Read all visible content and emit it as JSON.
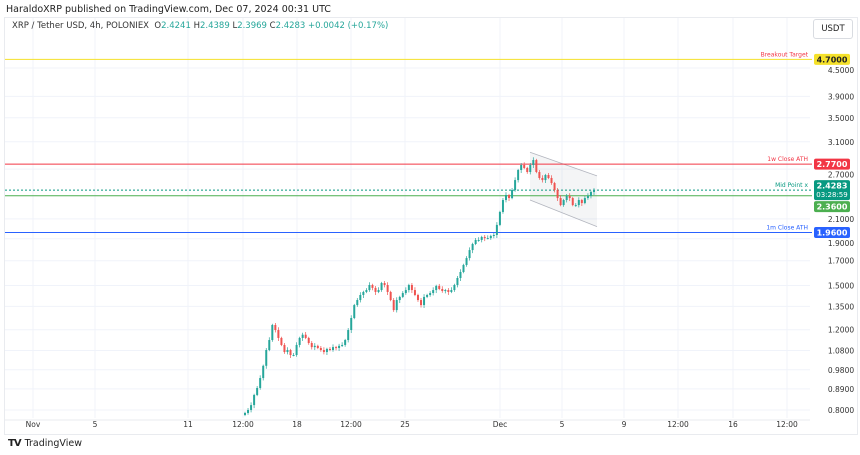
{
  "publisher_line": "HaraldoXRP published on TradingView.com, Dec 07, 2024 00:31 UTC",
  "legend": {
    "symbol": "XRP / Tether USD, 4h, POLONIEX",
    "o_label": "O",
    "o": "2.4241",
    "h_label": "H",
    "h": "2.4389",
    "l_label": "L",
    "l": "2.3969",
    "c_label": "C",
    "c": "2.4283",
    "change": "+0.0042 (+0.17%)"
  },
  "currency_button": "USDT",
  "brand": "TradingView",
  "colors": {
    "up": "#26a69a",
    "down": "#ef5350",
    "breakout": "#f5e12a",
    "close_ath_1w": "#f23645",
    "midpoint": "#4caf50",
    "close_ath_1m": "#2962ff",
    "last_price": "#089981"
  },
  "chart_data": {
    "type": "candlestick",
    "scale": "log",
    "ylim": [
      0.77,
      5.2
    ],
    "grid": true,
    "y_ticks": [
      "4.5000",
      "3.9000",
      "3.5000",
      "3.1000",
      "2.7000",
      "2.1000",
      "1.9000",
      "1.7000",
      "1.5000",
      "1.3500",
      "1.2000",
      "1.0800",
      "0.9800",
      "0.8900",
      "0.8000"
    ],
    "x_ticks": [
      "Nov",
      "5",
      "11",
      "12:00",
      "18",
      "12:00",
      "25",
      "Dec",
      "5",
      "9",
      "12:00",
      "16",
      "12:00"
    ],
    "closes": [
      0.788,
      0.8,
      0.82,
      0.863,
      0.894,
      0.94,
      1.0,
      1.083,
      1.139,
      1.229,
      1.198,
      1.151,
      1.111,
      1.072,
      1.083,
      1.056,
      1.056,
      1.111,
      1.151,
      1.17,
      1.151,
      1.122,
      1.099,
      1.106,
      1.094,
      1.083,
      1.072,
      1.089,
      1.083,
      1.099,
      1.094,
      1.106,
      1.111,
      1.139,
      1.198,
      1.273,
      1.359,
      1.394,
      1.43,
      1.452,
      1.466,
      1.504,
      1.482,
      1.452,
      1.466,
      1.519,
      1.504,
      1.452,
      1.394,
      1.325,
      1.394,
      1.416,
      1.444,
      1.466,
      1.504,
      1.466,
      1.43,
      1.394,
      1.359,
      1.416,
      1.43,
      1.444,
      1.466,
      1.497,
      1.474,
      1.459,
      1.466,
      1.452,
      1.466,
      1.504,
      1.558,
      1.606,
      1.664,
      1.723,
      1.794,
      1.85,
      1.888,
      1.888,
      1.917,
      1.906,
      1.906,
      1.927,
      1.936,
      2.037,
      2.175,
      2.31,
      2.369,
      2.333,
      2.43,
      2.555,
      2.688,
      2.757,
      2.716,
      2.661,
      2.757,
      2.827,
      2.661,
      2.582,
      2.555,
      2.621,
      2.582,
      2.517,
      2.43,
      2.333,
      2.252,
      2.31,
      2.358,
      2.333,
      2.252,
      2.252,
      2.31,
      2.275,
      2.333,
      2.358,
      2.406,
      2.4283
    ],
    "levels": [
      {
        "label": "Breakout Target",
        "price": 4.7,
        "tag": "4.7000",
        "color": "#f5e12a",
        "tag_text": "#222",
        "style": "solid"
      },
      {
        "label": "1w Close ATH",
        "price": 2.77,
        "tag": "2.7700",
        "color": "#f23645",
        "tag_text": "#fff",
        "style": "solid"
      },
      {
        "label": "Mid Point x",
        "price": 2.4283,
        "tag": "2.4283",
        "subtag": "03:28:59",
        "color": "#089981",
        "tag_text": "#fff",
        "style": "dotted"
      },
      {
        "label": "",
        "price": 2.36,
        "tag": "2.3600",
        "color": "#4caf50",
        "tag_text": "#fff",
        "style": "solid"
      },
      {
        "label": "1m Close ATH",
        "price": 1.96,
        "tag": "1.9600",
        "color": "#2962ff",
        "tag_text": "#fff",
        "style": "solid"
      }
    ],
    "channel": {
      "top": [
        2.94,
        2.61
      ],
      "bottom": [
        2.31,
        2.02
      ]
    }
  }
}
